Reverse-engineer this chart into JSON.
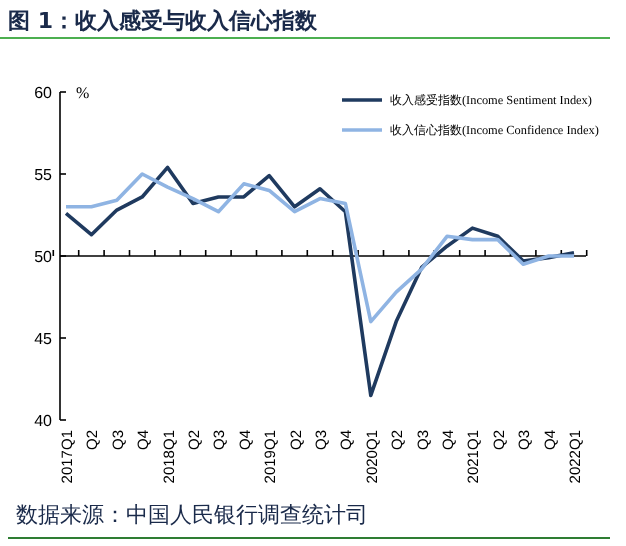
{
  "chart_data": {
    "type": "line",
    "title": "图 1：收入感受与收入信心指数",
    "ylabel": "%",
    "categories": [
      "2017Q1",
      "Q2",
      "Q3",
      "Q4",
      "2018Q1",
      "Q2",
      "Q3",
      "Q4",
      "2019Q1",
      "Q2",
      "Q3",
      "Q4",
      "2020Q1",
      "Q2",
      "Q3",
      "Q4",
      "2021Q1",
      "Q2",
      "Q3",
      "Q4",
      "2022Q1"
    ],
    "series": [
      {
        "name": "收入感受指数(Income Sentiment Index)",
        "color": "#1f3a5f",
        "values": [
          52.6,
          51.3,
          52.8,
          53.6,
          55.4,
          53.2,
          53.6,
          53.6,
          54.9,
          53.0,
          54.1,
          52.7,
          41.5,
          46.0,
          49.3,
          50.6,
          51.7,
          51.2,
          49.7,
          49.9,
          50.2
        ]
      },
      {
        "name": "收入信心指数(Income Confidence Index)",
        "color": "#8fb4e3",
        "values": [
          53.0,
          53.0,
          53.4,
          55.0,
          54.2,
          53.5,
          52.7,
          54.4,
          54.0,
          52.7,
          53.5,
          53.2,
          46.0,
          47.8,
          49.2,
          51.2,
          51.0,
          51.0,
          49.5,
          50.0,
          50.0
        ]
      }
    ],
    "ylim": [
      40,
      60
    ],
    "yticks": [
      40,
      45,
      50,
      55,
      60
    ],
    "ref_lines": [
      {
        "axis": "y",
        "value": 50,
        "color": "#000000"
      }
    ],
    "legend": "top right",
    "grid": false,
    "marker": "none",
    "line_style": "solid",
    "annotations": [
      "数据来源：中国人民银行调查统计司"
    ]
  }
}
